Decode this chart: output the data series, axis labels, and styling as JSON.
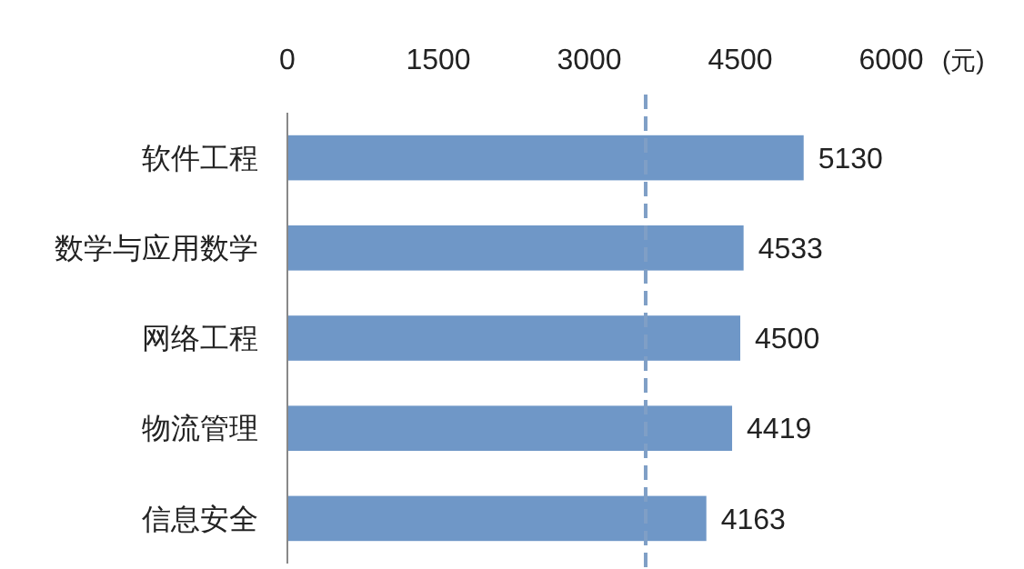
{
  "chart_data": {
    "type": "bar",
    "orientation": "horizontal",
    "xlabel": "(元)",
    "categories": [
      "软件工程",
      "数学与应用数学",
      "网络工程",
      "物流管理",
      "信息安全"
    ],
    "values": [
      5130,
      4533,
      4500,
      4419,
      4163
    ],
    "color": "#6f97c7",
    "data_labels": true,
    "xlim": [
      0,
      6000
    ],
    "xticks": [
      0,
      1500,
      3000,
      4500,
      6000
    ],
    "grid": false,
    "ref_lines": [
      {
        "axis": "x",
        "value": 3560,
        "color": "#7f9fc6",
        "line_style": "dashed"
      }
    ]
  }
}
